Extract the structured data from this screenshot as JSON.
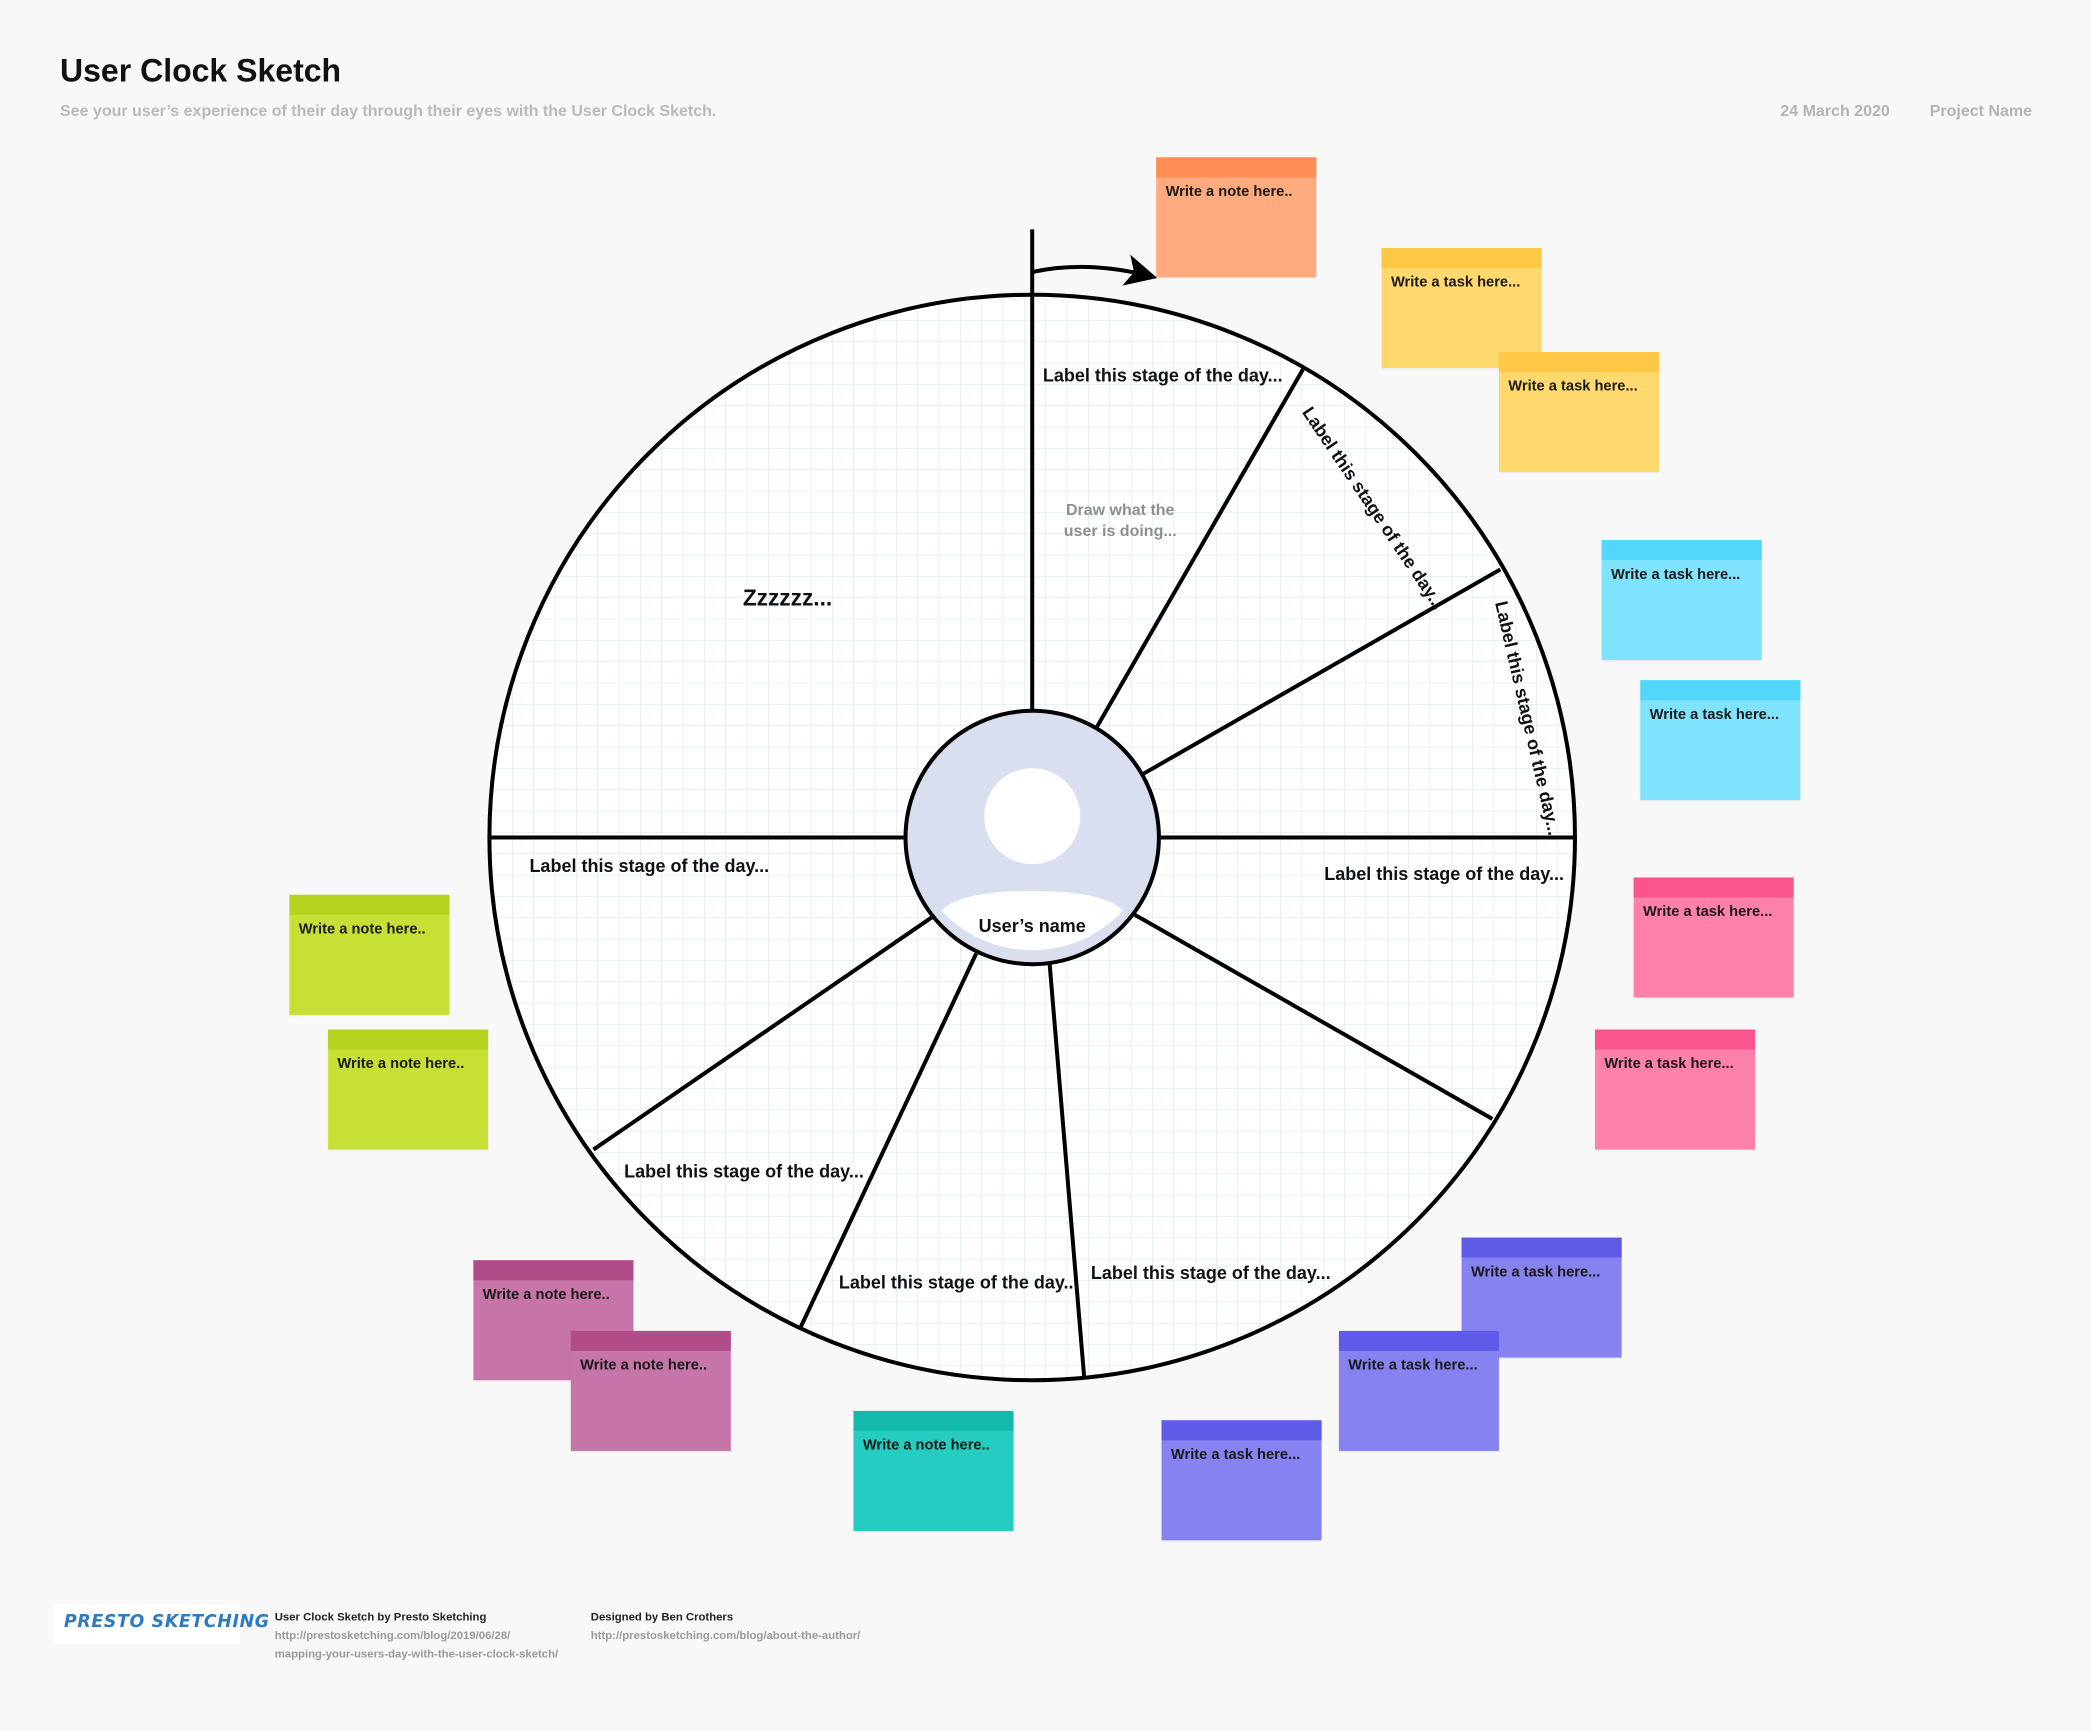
{
  "header": {
    "title": "User Clock Sketch",
    "subtitle": "See your user’s experience of their day through their eyes with the User Clock Sketch.",
    "date": "24 March 2020",
    "project": "Project Name"
  },
  "clock": {
    "stages": [
      "Label this stage of the day...",
      "Label this stage of the day...",
      "Label this stage of the day...",
      "Label this stage of the day...",
      "Label this stage of the day...",
      "Label this stage of the day...",
      "Label this stage of the day...",
      "Label this stage of the day..."
    ],
    "sleep_label": "Zzzzzz...",
    "hint_line1": "Draw what the",
    "hint_line2": "user is doing...",
    "user_name": "User’s name"
  },
  "stickies": [
    {
      "text": "Write a note here..",
      "color": "#ffaa7f",
      "band": "#ff8d55"
    },
    {
      "text": "Write a task here...",
      "color": "#ffd96e",
      "band": "#ffc947"
    },
    {
      "text": "Write a task here...",
      "color": "#ffd96e",
      "band": "#ffc947"
    },
    {
      "text": "Write a task here...",
      "color": "#7fe3fd",
      "band": "#52d6fb"
    },
    {
      "text": "Write a task here...",
      "color": "#7fe3fd",
      "band": "#52d6fb"
    },
    {
      "text": "Write a task here...",
      "color": "#ff80aa",
      "band": "#fb5590"
    },
    {
      "text": "Write a task here...",
      "color": "#ff80aa",
      "band": "#fb5590"
    },
    {
      "text": "Write a task here...",
      "color": "#8683f1",
      "band": "#5f5ae8"
    },
    {
      "text": "Write a task here...",
      "color": "#8683f1",
      "band": "#5f5ae8"
    },
    {
      "text": "Write a task here...",
      "color": "#8683f1",
      "band": "#5f5ae8"
    },
    {
      "text": "Write a note here..",
      "color": "#25ccc0",
      "band": "#13b9a9"
    },
    {
      "text": "Write a note here..",
      "color": "#c775a8",
      "band": "#b14c88"
    },
    {
      "text": "Write a note here..",
      "color": "#c775a8",
      "band": "#b14c88"
    },
    {
      "text": "Write a note here..",
      "color": "#c8e036",
      "band": "#b5d21f"
    },
    {
      "text": "Write a note here..",
      "color": "#c8e036",
      "band": "#b5d21f"
    }
  ],
  "footer": {
    "logo": "PRESTO SKETCHING",
    "credit_title": "User Clock Sketch by Presto Sketching",
    "credit_link1": "http://prestosketching.com/blog/2019/06/28/",
    "credit_link2": "mapping-your-users-day-with-the-user-clock-sketch/",
    "designer_title": "Designed by Ben Crothers",
    "designer_link": "http://prestosketching.com/blog/about-the-author/"
  }
}
